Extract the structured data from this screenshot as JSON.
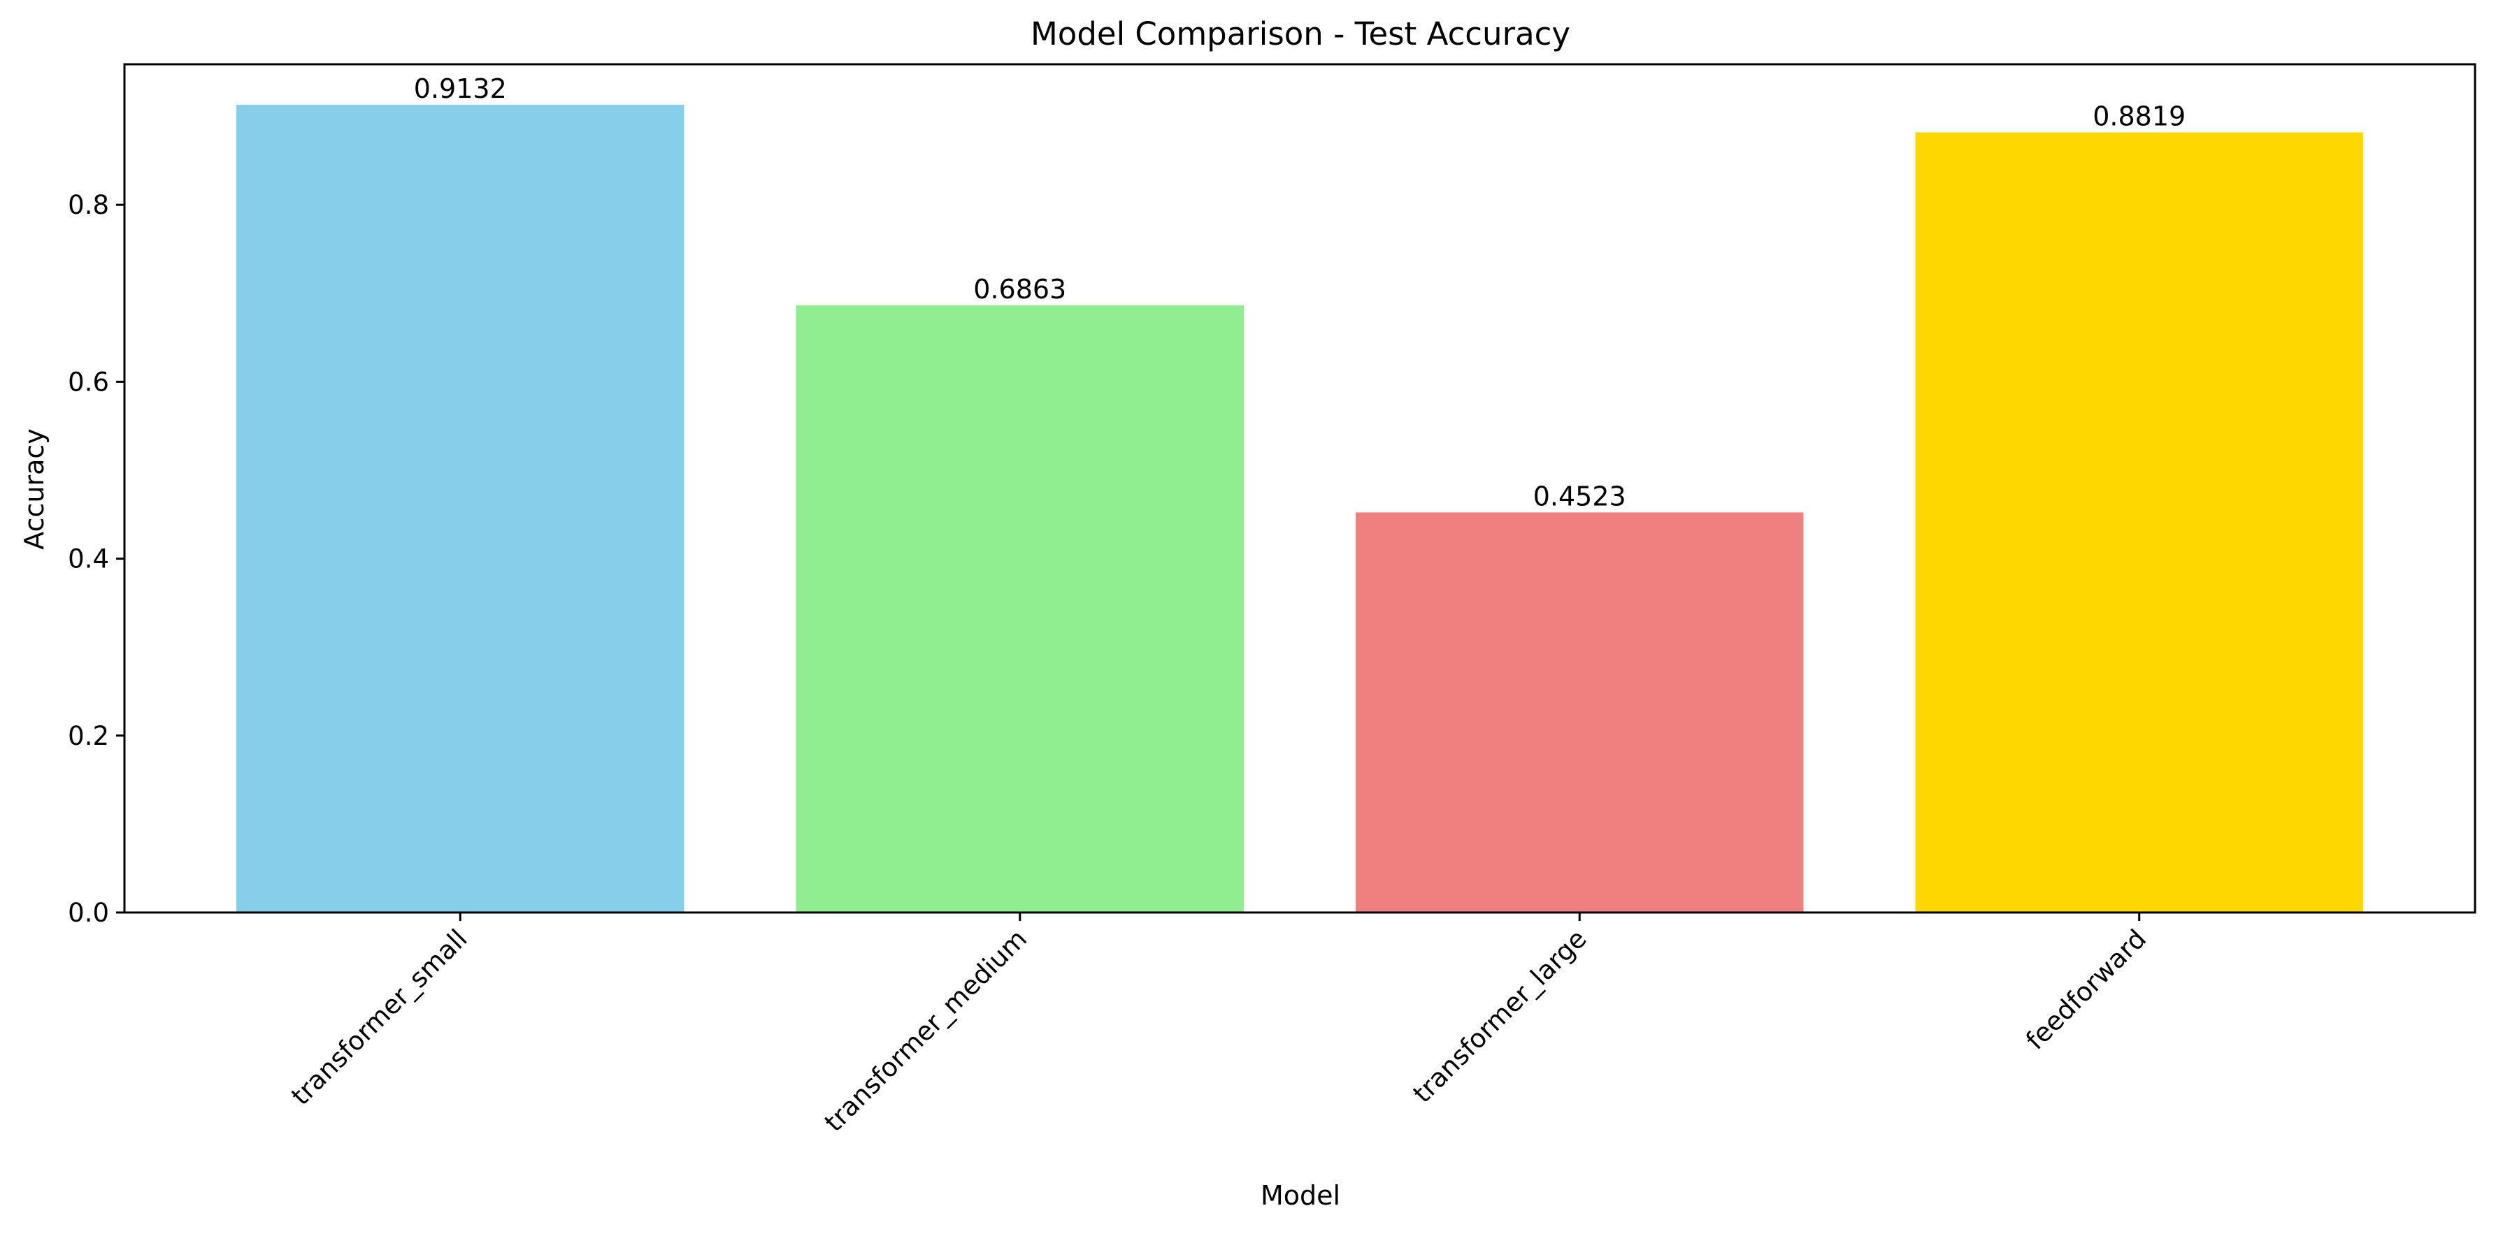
{
  "chart_data": {
    "type": "bar",
    "title": "Model Comparison - Test Accuracy",
    "xlabel": "Model",
    "ylabel": "Accuracy",
    "categories": [
      "transformer_small",
      "transformer_medium",
      "transformer_large",
      "feedforward"
    ],
    "values": [
      0.9132,
      0.6863,
      0.4523,
      0.8819
    ],
    "data_labels": [
      "0.9132",
      "0.6863",
      "0.4523",
      "0.8819"
    ],
    "colors": [
      "#87ceeb",
      "#90ee90",
      "#f08080",
      "#ffd700"
    ],
    "ylim": [
      0,
      0.9589
    ],
    "yticks": [
      0.0,
      0.2,
      0.4,
      0.6,
      0.8
    ],
    "ytick_labels": [
      "0.0",
      "0.2",
      "0.4",
      "0.6",
      "0.8"
    ],
    "grid": false,
    "legend": "none",
    "xtick_rotation": "45"
  }
}
